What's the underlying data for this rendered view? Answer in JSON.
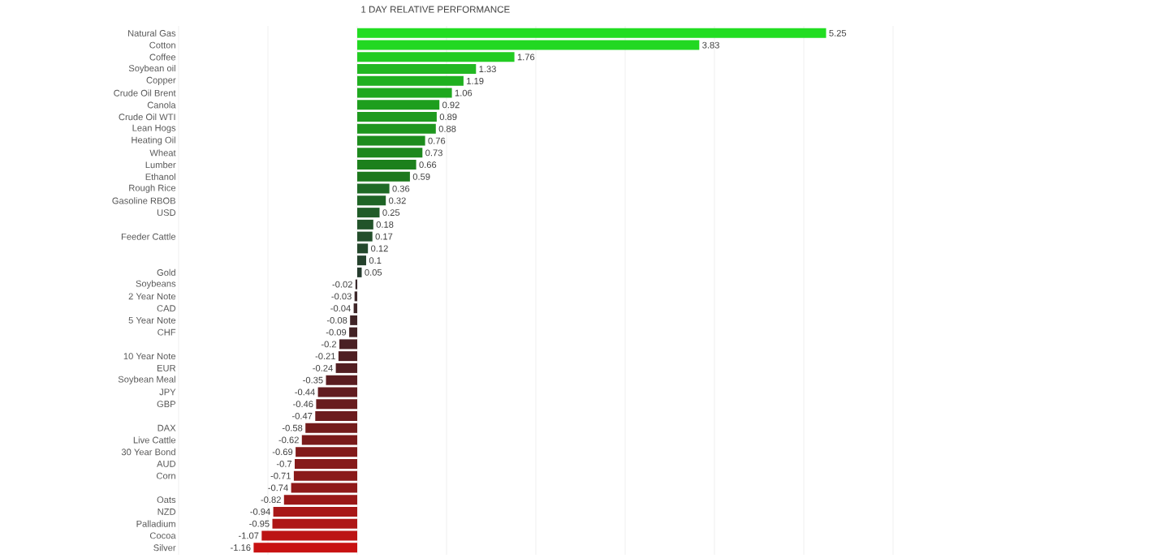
{
  "chart_data": {
    "type": "bar",
    "orientation": "horizontal",
    "title": "1 DAY RELATIVE PERFORMANCE",
    "categories": [
      "Natural Gas",
      "Cotton",
      "Coffee",
      "Soybean oil",
      "Copper",
      "Crude Oil Brent",
      "Canola",
      "Crude Oil WTI",
      "Lean Hogs",
      "Heating Oil",
      "Wheat",
      "Lumber",
      "Ethanol",
      "Rough Rice",
      "Gasoline RBOB",
      "USD",
      null,
      "Feeder Cattle",
      null,
      null,
      "Gold",
      "Soybeans",
      "2 Year Note",
      "CAD",
      "5 Year Note",
      "CHF",
      null,
      "10 Year Note",
      "EUR",
      "Soybean Meal",
      "JPY",
      "GBP",
      null,
      "DAX",
      "Live Cattle",
      "30 Year Bond",
      "AUD",
      "Corn",
      null,
      "Oats",
      "NZD",
      "Palladium",
      "Cocoa",
      "Silver"
    ],
    "values": [
      5.25,
      3.83,
      1.76,
      1.33,
      1.19,
      1.06,
      0.92,
      0.89,
      0.88,
      0.76,
      0.73,
      0.66,
      0.59,
      0.36,
      0.32,
      0.25,
      0.18,
      0.17,
      0.12,
      0.1,
      0.05,
      -0.02,
      -0.03,
      -0.04,
      -0.08,
      -0.09,
      -0.2,
      -0.21,
      -0.24,
      -0.35,
      -0.44,
      -0.46,
      -0.47,
      -0.58,
      -0.62,
      -0.69,
      -0.7,
      -0.71,
      -0.74,
      -0.82,
      -0.94,
      -0.95,
      -1.07,
      -1.16
    ],
    "colors": [
      "#22dd22",
      "#22d822",
      "#22cc22",
      "#22b822",
      "#20b020",
      "#1fa81f",
      "#1e9e1e",
      "#1e9a1e",
      "#1e961e",
      "#1d8c1d",
      "#1d881d",
      "#1c801c",
      "#1c781c",
      "#1f6a26",
      "#1f6426",
      "#205c28",
      "#22542a",
      "#234e2b",
      "#24482c",
      "#25422d",
      "#263c2e",
      "#3a2a2c",
      "#3c282a",
      "#3e2628",
      "#402426",
      "#422224",
      "#4a2024",
      "#4e1e22",
      "#521e22",
      "#5a1c20",
      "#621c20",
      "#681c1e",
      "#6c1c1e",
      "#741c1c",
      "#7a1a1a",
      "#821a1a",
      "#861a1a",
      "#8a1a1a",
      "#901a1a",
      "#9a1818",
      "#a81818",
      "#ae1616",
      "#bc1414",
      "#c81212"
    ],
    "data_labels": true,
    "xlim": [
      -2,
      6
    ],
    "xticks": [
      {
        "value": -2,
        "label": null
      },
      {
        "value": -1,
        "label": null
      },
      {
        "value": 0,
        "label": null
      },
      {
        "value": 1,
        "label": null
      },
      {
        "value": 2,
        "label": null
      },
      {
        "value": 3,
        "label": null
      },
      {
        "value": 4,
        "label": null
      },
      {
        "value": 5,
        "label": null
      },
      {
        "value": 6,
        "label": null
      }
    ],
    "grid": "x",
    "tick_labels": "y"
  }
}
